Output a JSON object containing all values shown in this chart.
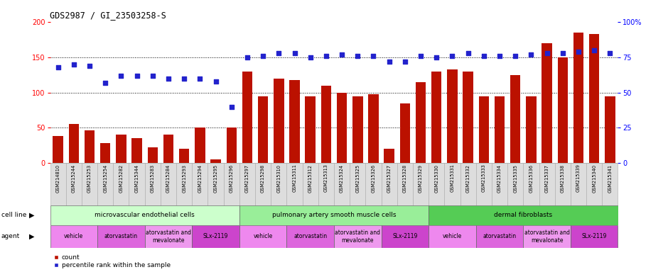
{
  "title": "GDS2987 / GI_23503258-S",
  "samples": [
    "GSM214810",
    "GSM215244",
    "GSM215253",
    "GSM215254",
    "GSM215282",
    "GSM215344",
    "GSM215283",
    "GSM215284",
    "GSM215293",
    "GSM215294",
    "GSM215295",
    "GSM215296",
    "GSM215297",
    "GSM215298",
    "GSM215310",
    "GSM215311",
    "GSM215312",
    "GSM215313",
    "GSM215324",
    "GSM215325",
    "GSM215326",
    "GSM215327",
    "GSM215328",
    "GSM215329",
    "GSM215330",
    "GSM215331",
    "GSM215332",
    "GSM215333",
    "GSM215334",
    "GSM215335",
    "GSM215336",
    "GSM215337",
    "GSM215338",
    "GSM215339",
    "GSM215340",
    "GSM215341"
  ],
  "counts": [
    38,
    55,
    46,
    28,
    40,
    35,
    22,
    40,
    20,
    50,
    5,
    50,
    130,
    95,
    120,
    118,
    95,
    110,
    100,
    95,
    98,
    20,
    85,
    115,
    130,
    133,
    130,
    95,
    95,
    125,
    95,
    170,
    150,
    185,
    183,
    95
  ],
  "percentiles": [
    68,
    70,
    69,
    57,
    62,
    62,
    62,
    60,
    60,
    60,
    58,
    40,
    75,
    76,
    78,
    78,
    75,
    76,
    77,
    76,
    76,
    72,
    72,
    76,
    75,
    76,
    78,
    76,
    76,
    76,
    77,
    78,
    78,
    79,
    80,
    78
  ],
  "bar_color": "#bb1100",
  "dot_color": "#2222cc",
  "cell_line_groups": [
    {
      "label": "microvascular endothelial cells",
      "start": 0,
      "end": 12,
      "color": "#ccffcc"
    },
    {
      "label": "pulmonary artery smooth muscle cells",
      "start": 12,
      "end": 24,
      "color": "#99ee99"
    },
    {
      "label": "dermal fibroblasts",
      "start": 24,
      "end": 36,
      "color": "#55cc55"
    }
  ],
  "agent_groups": [
    {
      "label": "vehicle",
      "start": 0,
      "end": 3,
      "color": "#ee88ee"
    },
    {
      "label": "atorvastatin",
      "start": 3,
      "end": 6,
      "color": "#dd66dd"
    },
    {
      "label": "atorvastatin and\nmevalonate",
      "start": 6,
      "end": 9,
      "color": "#ee99ee"
    },
    {
      "label": "SLx-2119",
      "start": 9,
      "end": 12,
      "color": "#cc44cc"
    },
    {
      "label": "vehicle",
      "start": 12,
      "end": 15,
      "color": "#ee88ee"
    },
    {
      "label": "atorvastatin",
      "start": 15,
      "end": 18,
      "color": "#dd66dd"
    },
    {
      "label": "atorvastatin and\nmevalonate",
      "start": 18,
      "end": 21,
      "color": "#ee99ee"
    },
    {
      "label": "SLx-2119",
      "start": 21,
      "end": 24,
      "color": "#cc44cc"
    },
    {
      "label": "vehicle",
      "start": 24,
      "end": 27,
      "color": "#ee88ee"
    },
    {
      "label": "atorvastatin",
      "start": 27,
      "end": 30,
      "color": "#dd66dd"
    },
    {
      "label": "atorvastatin and\nmevalonate",
      "start": 30,
      "end": 33,
      "color": "#ee99ee"
    },
    {
      "label": "SLx-2119",
      "start": 33,
      "end": 36,
      "color": "#cc44cc"
    }
  ],
  "ylim_left": [
    0,
    200
  ],
  "ylim_right": [
    0,
    100
  ],
  "yticks_left": [
    0,
    50,
    100,
    150,
    200
  ],
  "yticks_right": [
    0,
    25,
    50,
    75,
    100
  ],
  "background_color": "#ffffff",
  "label_bg": "#dddddd"
}
